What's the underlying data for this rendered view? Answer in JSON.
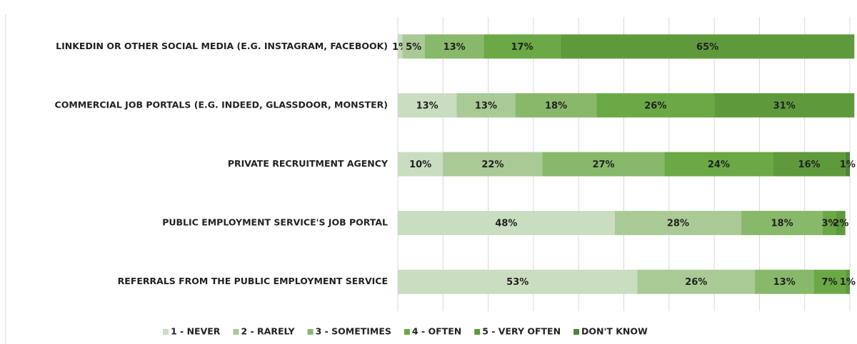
{
  "chart_data": {
    "type": "stacked_bar_horizontal",
    "categories": [
      "LINKEDIN OR OTHER SOCIAL MEDIA (E.G. INSTAGRAM, FACEBOOK)",
      "COMMERCIAL JOB PORTALS (E.G. INDEED, GLASSDOOR, MONSTER)",
      "PRIVATE RECRUITMENT AGENCY",
      "PUBLIC EMPLOYMENT SERVICE'S JOB PORTAL",
      "REFERRALS FROM THE PUBLIC EMPLOYMENT SERVICE"
    ],
    "series": [
      {
        "name": "1 - NEVER",
        "color": "#c9ddc0",
        "values": [
          1,
          13,
          10,
          48,
          53
        ],
        "value_labels": [
          "1%",
          "13%",
          "10%",
          "48%",
          "53%"
        ]
      },
      {
        "name": "2 - RARELY",
        "color": "#a9c995",
        "values": [
          5,
          13,
          22,
          28,
          26
        ],
        "value_labels": [
          "5%",
          "13%",
          "22%",
          "28%",
          "26%"
        ]
      },
      {
        "name": "3 - SOMETIMES",
        "color": "#88b86a",
        "values": [
          13,
          18,
          27,
          18,
          13
        ],
        "value_labels": [
          "13%",
          "18%",
          "27%",
          "18%",
          "13%"
        ]
      },
      {
        "name": "4 - OFTEN",
        "color": "#6aa945",
        "values": [
          17,
          26,
          24,
          3,
          7
        ],
        "value_labels": [
          "17%",
          "26%",
          "24%",
          "3%",
          "7%"
        ]
      },
      {
        "name": "5 - VERY OFTEN",
        "color": "#5e9a3c",
        "values": [
          65,
          31,
          16,
          2,
          1
        ],
        "value_labels": [
          "65%",
          "31%",
          "16%",
          "2%",
          "1%"
        ]
      },
      {
        "name": "DON'T KNOW",
        "color": "#4e8534",
        "values": [
          0,
          0,
          1,
          0,
          0
        ],
        "value_labels": [
          null,
          null,
          "1%",
          null,
          null
        ]
      }
    ],
    "xlim": [
      0,
      100
    ],
    "xticks": [
      0,
      10,
      20,
      30,
      40,
      50,
      60,
      70,
      80,
      90,
      100
    ],
    "grid": true,
    "legend": "bottom"
  }
}
